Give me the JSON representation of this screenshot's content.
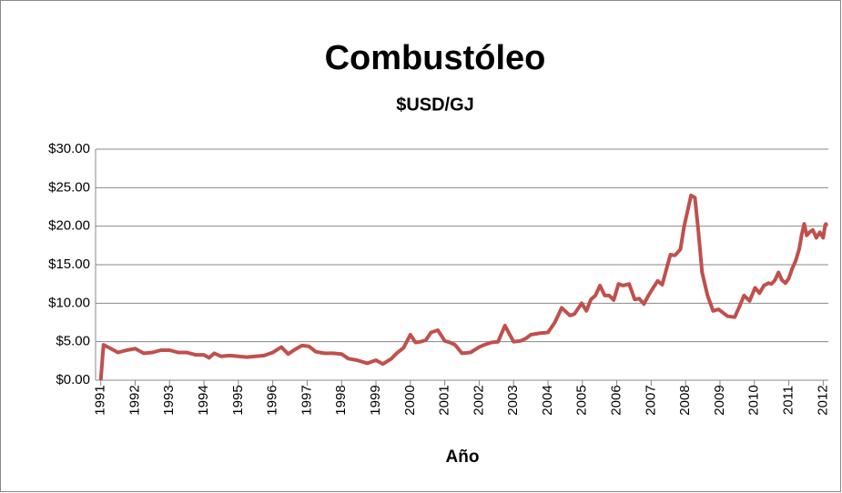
{
  "chart_data": {
    "type": "line",
    "title": "Combustóleo",
    "subtitle": "$USD/GJ",
    "x_label": "Año",
    "color": "#c0504d",
    "grid": true,
    "x": [
      1991.0,
      1991.08,
      1991.25,
      1991.5,
      1991.75,
      1992.0,
      1992.25,
      1992.5,
      1992.75,
      1993.0,
      1993.25,
      1993.5,
      1993.75,
      1994.0,
      1994.15,
      1994.3,
      1994.5,
      1994.75,
      1995.0,
      1995.25,
      1995.5,
      1995.75,
      1996.0,
      1996.25,
      1996.45,
      1996.65,
      1996.85,
      1997.05,
      1997.25,
      1997.5,
      1997.75,
      1998.0,
      1998.2,
      1998.45,
      1998.75,
      1999.0,
      1999.2,
      1999.45,
      1999.6,
      1999.8,
      2000.0,
      2000.15,
      2000.3,
      2000.45,
      2000.6,
      2000.8,
      2001.0,
      2001.15,
      2001.3,
      2001.5,
      2001.75,
      2002.0,
      2002.15,
      2002.35,
      2002.55,
      2002.75,
      2003.0,
      2003.2,
      2003.35,
      2003.5,
      2003.75,
      2004.0,
      2004.2,
      2004.4,
      2004.64,
      2004.77,
      2004.98,
      2005.12,
      2005.25,
      2005.38,
      2005.51,
      2005.65,
      2005.78,
      2005.91,
      2006.05,
      2006.18,
      2006.36,
      2006.52,
      2006.65,
      2006.79,
      2006.92,
      2007.06,
      2007.19,
      2007.32,
      2007.43,
      2007.56,
      2007.69,
      2007.85,
      2007.96,
      2008.06,
      2008.16,
      2008.27,
      2008.37,
      2008.48,
      2008.64,
      2008.8,
      2008.96,
      2009.22,
      2009.43,
      2009.56,
      2009.7,
      2009.86,
      2010.02,
      2010.15,
      2010.28,
      2010.41,
      2010.5,
      2010.6,
      2010.7,
      2010.8,
      2010.9,
      2011.0,
      2011.1,
      2011.2,
      2011.3,
      2011.38,
      2011.45,
      2011.52,
      2011.6,
      2011.7,
      2011.8,
      2011.9,
      2012.0,
      2012.06,
      2012.12
    ],
    "values": [
      0,
      4.6,
      4.2,
      3.6,
      3.9,
      4.1,
      3.5,
      3.6,
      3.9,
      3.9,
      3.6,
      3.6,
      3.3,
      3.3,
      2.9,
      3.5,
      3.1,
      3.2,
      3.1,
      3.0,
      3.1,
      3.2,
      3.6,
      4.3,
      3.4,
      4.0,
      4.5,
      4.4,
      3.7,
      3.5,
      3.5,
      3.4,
      2.8,
      2.6,
      2.2,
      2.6,
      2.1,
      2.8,
      3.5,
      4.2,
      5.9,
      4.9,
      5.0,
      5.2,
      6.2,
      6.5,
      5.1,
      4.9,
      4.6,
      3.5,
      3.6,
      4.3,
      4.6,
      4.9,
      5.0,
      7.1,
      5.0,
      5.1,
      5.4,
      5.9,
      6.1,
      6.2,
      7.5,
      9.4,
      8.4,
      8.6,
      10.0,
      9.0,
      10.5,
      11.0,
      12.3,
      11.0,
      11.0,
      10.4,
      12.5,
      12.3,
      12.5,
      10.5,
      10.6,
      9.9,
      11.0,
      12.0,
      12.9,
      12.4,
      14.2,
      16.3,
      16.2,
      17.0,
      20.0,
      22.0,
      24.0,
      23.7,
      19.5,
      14.0,
      11.0,
      9.0,
      9.2,
      8.3,
      8.2,
      9.5,
      11.0,
      10.3,
      12.0,
      11.3,
      12.3,
      12.6,
      12.5,
      13.0,
      14.0,
      13.0,
      12.6,
      13.2,
      14.5,
      15.5,
      17.0,
      19.0,
      20.3,
      18.8,
      19.2,
      19.5,
      18.5,
      19.2,
      18.5,
      20.2,
      20.4
    ],
    "xlim": [
      1990.85,
      2012.15
    ],
    "xticks": [
      1991,
      1992,
      1993,
      1994,
      1995,
      1996,
      1997,
      1998,
      1999,
      2000,
      2001,
      2002,
      2003,
      2004,
      2005,
      2006,
      2007,
      2008,
      2009,
      2010,
      2011,
      2012
    ],
    "ylim": [
      0,
      30
    ],
    "yticks": [
      {
        "value": 0,
        "label": "$0.00"
      },
      {
        "value": 5,
        "label": "$5.00"
      },
      {
        "value": 10,
        "label": "$10.00"
      },
      {
        "value": 15,
        "label": "$15.00"
      },
      {
        "value": 20,
        "label": "$20.00"
      },
      {
        "value": 25,
        "label": "$25.00"
      },
      {
        "value": 30,
        "label": "$30.00"
      }
    ]
  }
}
